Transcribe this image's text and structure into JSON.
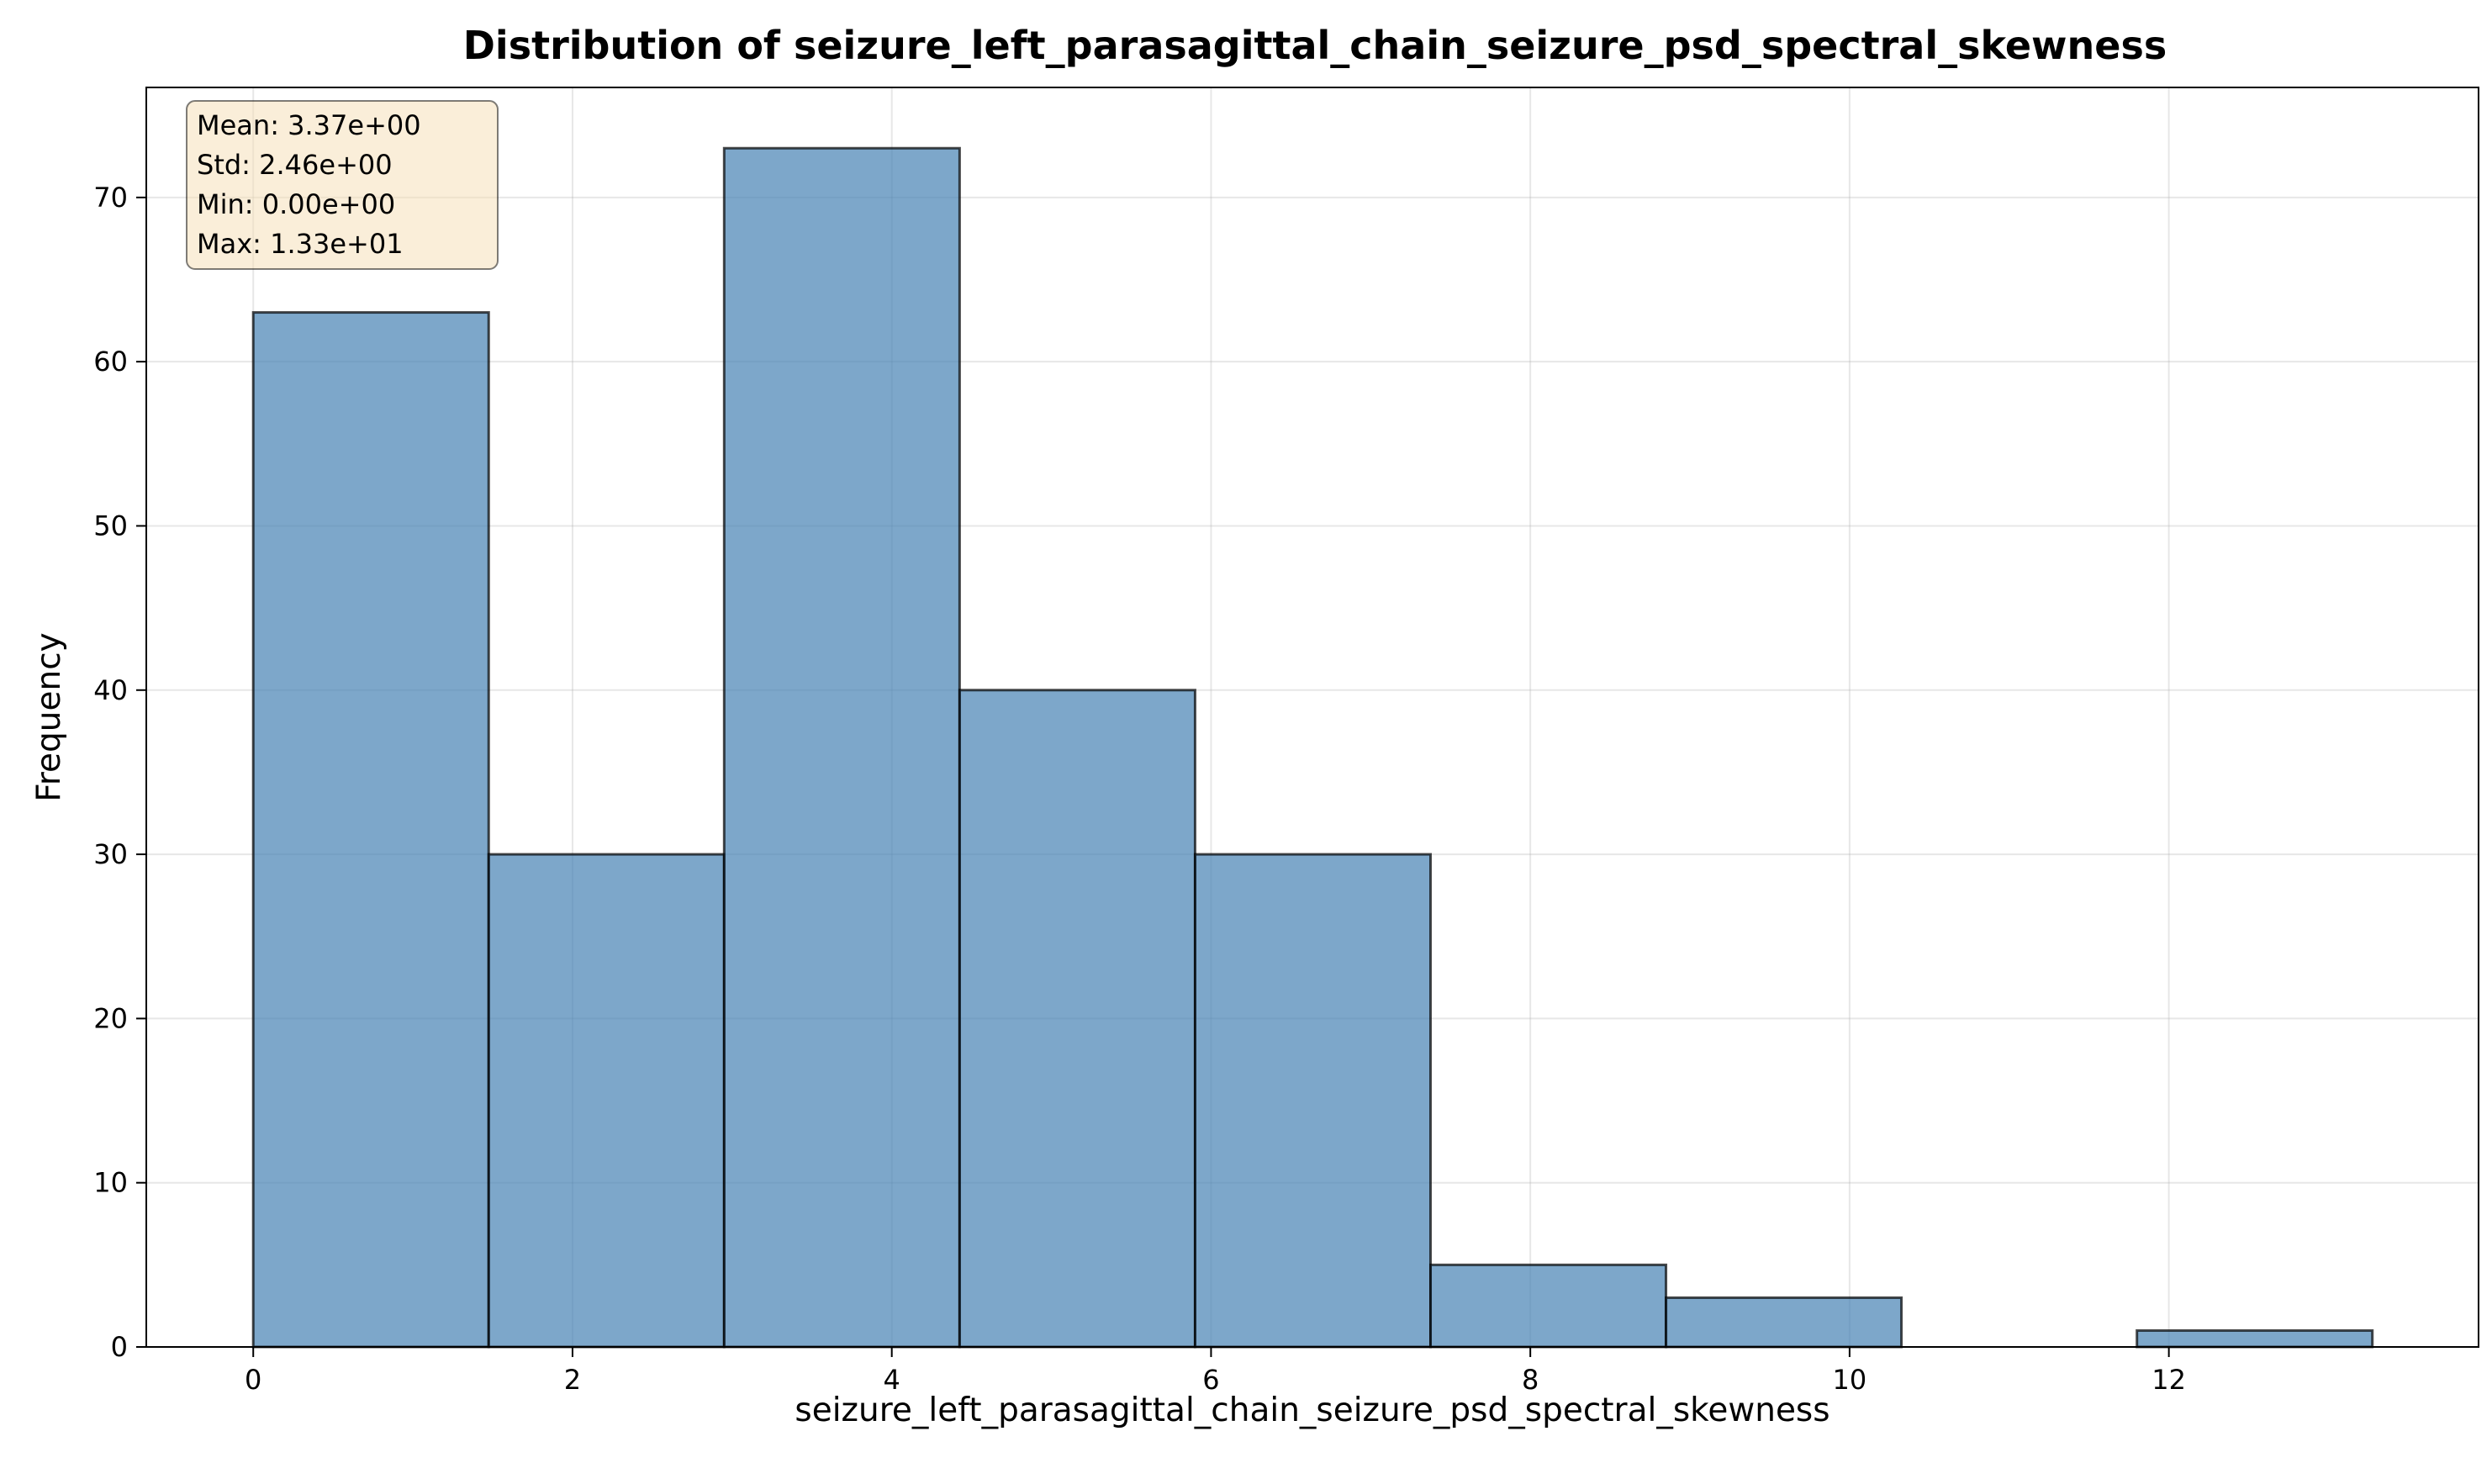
{
  "chart_data": {
    "type": "bar",
    "title": "Distribution of seizure_left_parasagittal_chain_seizure_psd_spectral_skewness",
    "xlabel": "seizure_left_parasagittal_chain_seizure_psd_spectral_skewness",
    "ylabel": "Frequency",
    "bin_edges": [
      0,
      1.475,
      2.95,
      4.425,
      5.9,
      7.375,
      8.85,
      10.325,
      11.8,
      13.275
    ],
    "values": [
      63,
      30,
      73,
      40,
      30,
      5,
      3,
      0,
      1
    ],
    "xlim": [
      -0.67,
      13.94
    ],
    "ylim": [
      0,
      76.7
    ],
    "xticks": [
      0,
      2,
      4,
      6,
      8,
      10,
      12
    ],
    "yticks": [
      0,
      10,
      20,
      30,
      40,
      50,
      60,
      70
    ],
    "grid": true,
    "bar_color": "#4682b4",
    "stats": {
      "lines": [
        "Mean: 3.37e+00",
        "Std: 2.46e+00",
        "Min: 0.00e+00",
        "Max: 1.33e+01"
      ],
      "placement": "top-left",
      "box_color": "#f5deb3"
    }
  }
}
